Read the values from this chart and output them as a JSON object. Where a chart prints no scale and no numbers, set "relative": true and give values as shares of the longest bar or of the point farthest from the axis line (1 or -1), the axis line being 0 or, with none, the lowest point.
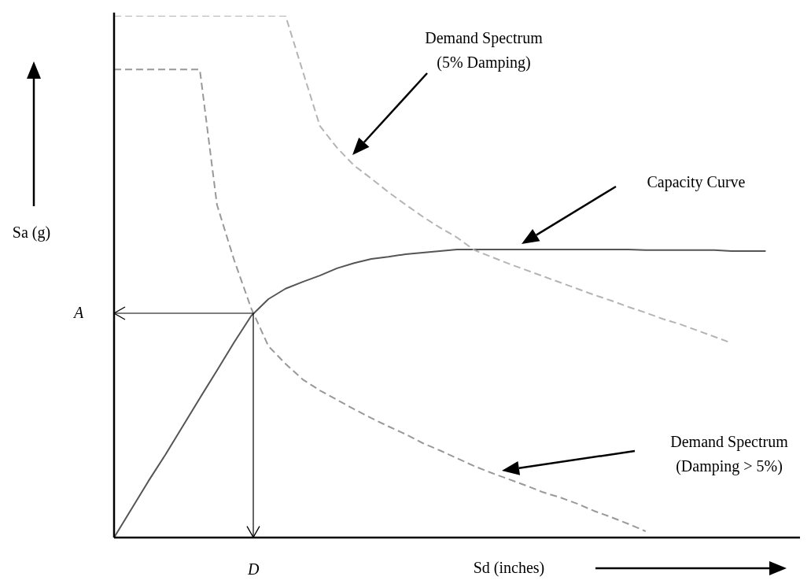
{
  "chart_data": {
    "type": "line",
    "relative": true,
    "xlabel": "Sd (inches)",
    "ylabel": "Sa (g)",
    "legend": false,
    "marker": "none",
    "categories": [
      null,
      null,
      null,
      null,
      null,
      null,
      null,
      null,
      null,
      null,
      null,
      null,
      null,
      null,
      null,
      null,
      null,
      null,
      null,
      null,
      null,
      null,
      null,
      null,
      null,
      null,
      null,
      null,
      null,
      null,
      null,
      null,
      null,
      null,
      null,
      null,
      null,
      null,
      null,
      null,
      null
    ],
    "series": [
      {
        "color": "#b4b4b4",
        "line_style": "dashed",
        "values": [
          1,
          1,
          1,
          1,
          1,
          1,
          1,
          1,
          1,
          1,
          1,
          0.894,
          0.789,
          0.747,
          0.713,
          0.688,
          0.662,
          0.638,
          0.615,
          0.594,
          0.575,
          0.551,
          0.538,
          0.525,
          0.513,
          0.501,
          0.489,
          0.477,
          0.465,
          0.454,
          0.442,
          0.431,
          0.419,
          0.409,
          0.397,
          0.385,
          0.373,
          null,
          null,
          null,
          null
        ]
      },
      {
        "color": "#555555",
        "line_style": "solid",
        "values": [
          0,
          0.054,
          0.108,
          0.159,
          0.213,
          0.267,
          0.32,
          0.374,
          0.425,
          0.457,
          0.477,
          0.49,
          0.502,
          0.516,
          0.526,
          0.534,
          0.538,
          0.543,
          0.546,
          0.549,
          0.552,
          0.552,
          0.552,
          0.552,
          0.552,
          0.552,
          0.552,
          0.552,
          0.552,
          0.552,
          0.552,
          0.551,
          0.551,
          0.551,
          0.551,
          0.551,
          0.549,
          0.549,
          0.549,
          null,
          null
        ]
      },
      {
        "color": "#999999",
        "line_style": "dashed",
        "values": [
          0.897,
          0.897,
          0.897,
          0.897,
          0.897,
          0.897,
          0.638,
          0.532,
          0.439,
          0.367,
          0.333,
          0.303,
          0.282,
          0.264,
          0.246,
          0.229,
          0.213,
          0.198,
          0.181,
          0.167,
          0.152,
          0.137,
          0.124,
          0.112,
          0.1,
          0.087,
          0.077,
          0.065,
          0.051,
          0.039,
          0.026,
          0.012,
          null,
          null,
          null,
          null,
          null,
          null,
          null,
          null,
          null
        ]
      }
    ],
    "annotations": [
      "Demand Spectrum (5% Damping)",
      "Capacity Curve",
      "Demand Spectrum (Damping > 5%)",
      "A",
      "D"
    ]
  }
}
